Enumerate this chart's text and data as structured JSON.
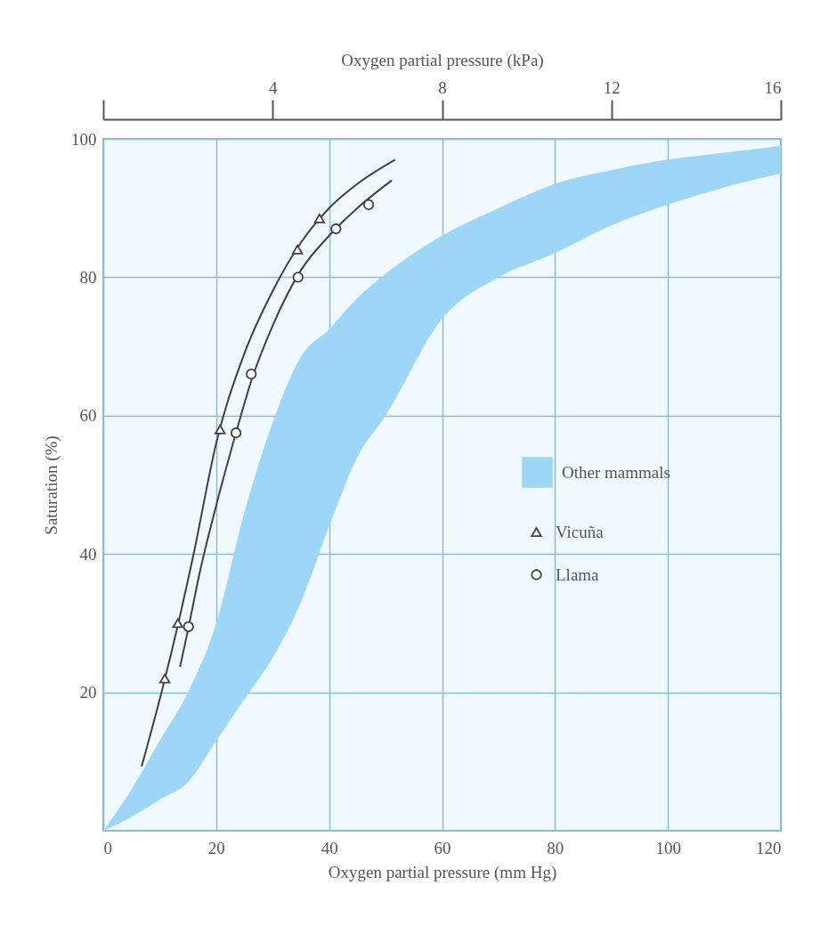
{
  "chart_data": {
    "type": "line",
    "xlabel": "Oxygen partial pressure (mm Hg)",
    "ylabel": "Saturation (%)",
    "x2label": "Oxygen partial pressure (kPa)",
    "xlim": [
      0,
      120
    ],
    "xticks": [
      0,
      20,
      40,
      60,
      80,
      100,
      120
    ],
    "x2lim": [
      0,
      16
    ],
    "x2ticks": [
      {
        "value": 0,
        "label": null
      },
      4,
      8,
      12,
      16
    ],
    "ylim": [
      0,
      100
    ],
    "yticks": [
      20,
      40,
      60,
      80,
      100
    ],
    "grid": true,
    "legend": "right",
    "series": [
      {
        "name": "Other mammals",
        "type": "area",
        "color": "#9dd6f7",
        "x": [
          0,
          5,
          10,
          15,
          20,
          25,
          30,
          35,
          40,
          45,
          50,
          60,
          70,
          80,
          90,
          100,
          110,
          120
        ],
        "values": [
          null,
          null,
          null,
          null,
          null,
          null,
          null,
          null,
          null,
          null,
          null,
          null,
          null,
          null,
          null,
          null,
          null,
          null
        ],
        "lower": [
          0,
          2,
          4.5,
          7,
          13,
          19,
          25,
          33,
          44,
          54,
          60,
          74,
          80,
          83.5,
          87.5,
          90.5,
          93,
          95
        ],
        "upper": [
          0,
          6,
          13,
          20,
          30,
          46,
          59,
          68.5,
          72.5,
          77,
          80.5,
          86,
          90,
          93.5,
          95.5,
          97,
          98,
          99
        ]
      },
      {
        "color": "#404040",
        "x": [
          6.8,
          10,
          13,
          16,
          20,
          25,
          30,
          35,
          40,
          45,
          51.7
        ],
        "values": [
          9.3,
          19,
          29,
          40,
          56,
          69,
          78,
          85,
          90,
          93.5,
          97
        ]
      },
      {
        "color": "#404040",
        "x": [
          13.6,
          15,
          17,
          20,
          23.5,
          26.2,
          30,
          35,
          40,
          45,
          51.1
        ],
        "values": [
          23.7,
          29,
          37,
          47,
          57.5,
          65,
          73,
          81,
          86,
          90,
          94
        ]
      },
      {
        "name": "Vicuña",
        "type": "scatter",
        "marker": "triangle",
        "color": "#404040",
        "x": [
          10.9,
          13.2,
          20.7,
          34.4,
          38.3
        ],
        "values": [
          22,
          30,
          58,
          84,
          88.5
        ]
      },
      {
        "name": "Llama",
        "type": "scatter",
        "marker": "circle",
        "color": "#404040",
        "x": [
          15.1,
          23.5,
          26.2,
          34.5,
          41.2,
          47
        ],
        "values": [
          29.5,
          57.5,
          66,
          80,
          87,
          90.5
        ]
      }
    ]
  }
}
